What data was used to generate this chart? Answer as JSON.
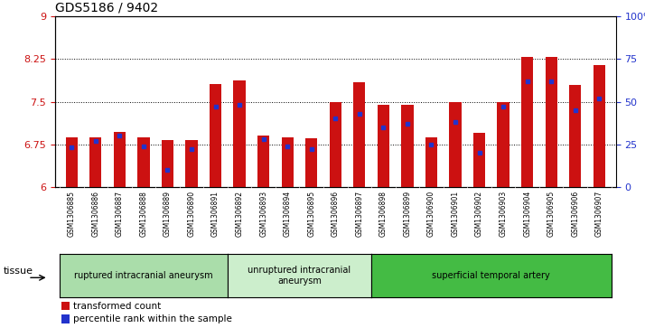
{
  "title": "GDS5186 / 9402",
  "samples": [
    "GSM1306885",
    "GSM1306886",
    "GSM1306887",
    "GSM1306888",
    "GSM1306889",
    "GSM1306890",
    "GSM1306891",
    "GSM1306892",
    "GSM1306893",
    "GSM1306894",
    "GSM1306895",
    "GSM1306896",
    "GSM1306897",
    "GSM1306898",
    "GSM1306899",
    "GSM1306900",
    "GSM1306901",
    "GSM1306902",
    "GSM1306903",
    "GSM1306904",
    "GSM1306905",
    "GSM1306906",
    "GSM1306907"
  ],
  "transformed_count": [
    6.87,
    6.87,
    6.97,
    6.88,
    6.82,
    6.83,
    7.81,
    7.87,
    6.9,
    6.88,
    6.86,
    7.5,
    7.84,
    7.45,
    7.45,
    6.87,
    7.5,
    6.95,
    7.5,
    8.28,
    8.28,
    7.8,
    8.15
  ],
  "percentile_rank": [
    23,
    27,
    30,
    24,
    10,
    22,
    47,
    48,
    28,
    24,
    22,
    40,
    43,
    35,
    37,
    25,
    38,
    20,
    47,
    62,
    62,
    45,
    52
  ],
  "groups": [
    {
      "label": "ruptured intracranial aneurysm",
      "start": 0,
      "end": 7,
      "color": "#aaddaa"
    },
    {
      "label": "unruptured intracranial\naneurysm",
      "start": 7,
      "end": 13,
      "color": "#cceecc"
    },
    {
      "label": "superficial temporal artery",
      "start": 13,
      "end": 23,
      "color": "#44bb44"
    }
  ],
  "ylim_left": [
    6,
    9
  ],
  "ylim_right": [
    0,
    100
  ],
  "yticks_left": [
    6,
    6.75,
    7.5,
    8.25,
    9
  ],
  "yticks_right": [
    0,
    25,
    50,
    75,
    100
  ],
  "ytick_labels_right": [
    "0",
    "25",
    "50",
    "75",
    "100%"
  ],
  "bar_color": "#cc1111",
  "dot_color": "#2233cc",
  "bar_width": 0.5,
  "plot_bg_color": "#ffffff",
  "xtick_bg_color": "#dddddd",
  "tissue_label": "tissue",
  "legend_items": [
    {
      "label": "transformed count",
      "color": "#cc1111"
    },
    {
      "label": "percentile rank within the sample",
      "color": "#2233cc"
    }
  ]
}
